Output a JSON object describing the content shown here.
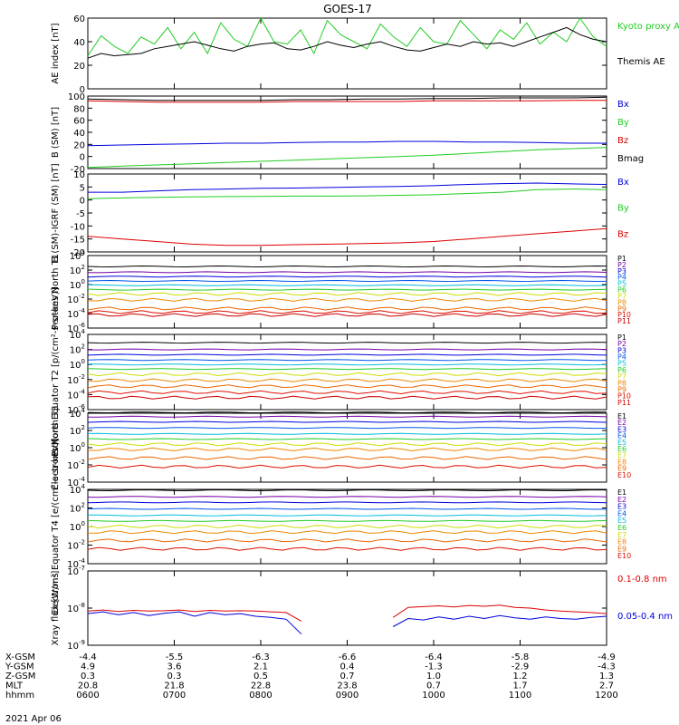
{
  "title": "GOES-17",
  "date": "2021 Apr 06",
  "colors": {
    "black": "#000000",
    "red": "#dd0000",
    "green": "#22cc22",
    "blue": "#0000dd",
    "cyan": "#00bbdd",
    "purple": "#7700aa",
    "yellow": "#ccdd00",
    "orange": "#ee8800"
  },
  "chart_data": [
    {
      "type": "line",
      "ylabel": "AE index [nT]",
      "ylim": [
        0,
        60
      ],
      "yticks": [
        "0",
        "20",
        "40",
        "60"
      ],
      "legend": [
        "Kyoto proxy AE",
        "Themis AE"
      ],
      "series": [
        {
          "name": "Kyoto proxy AE",
          "color": "green",
          "values": [
            28,
            45,
            36,
            30,
            44,
            38,
            52,
            34,
            48,
            30,
            56,
            42,
            36,
            60,
            40,
            38,
            50,
            30,
            58,
            46,
            40,
            34,
            55,
            44,
            36,
            52,
            40,
            38,
            58,
            46,
            34,
            50,
            42,
            56,
            38,
            48,
            40,
            60,
            44,
            36
          ]
        },
        {
          "name": "Themis AE",
          "color": "black",
          "values": [
            26,
            30,
            28,
            29,
            30,
            34,
            36,
            38,
            40,
            37,
            34,
            32,
            36,
            38,
            39,
            34,
            33,
            36,
            40,
            37,
            35,
            38,
            40,
            36,
            33,
            32,
            35,
            38,
            36,
            40,
            38,
            39,
            36,
            40,
            44,
            48,
            52,
            46,
            42,
            40
          ]
        }
      ]
    },
    {
      "type": "line",
      "ylabel": "B (SM) [nT]",
      "ylim": [
        -20,
        100
      ],
      "yticks": [
        "-20",
        "0",
        "20",
        "40",
        "60",
        "80",
        "100"
      ],
      "legend": [
        "Bx",
        "By",
        "Bz",
        "Bmag"
      ],
      "series": [
        {
          "name": "Bx",
          "color": "blue",
          "values": [
            18,
            19,
            20,
            21,
            22,
            22,
            23,
            24,
            24,
            25,
            25,
            24,
            24,
            23,
            22,
            22
          ]
        },
        {
          "name": "By",
          "color": "green",
          "values": [
            -18,
            -16,
            -14,
            -12,
            -10,
            -8,
            -6,
            -4,
            -2,
            0,
            2,
            5,
            8,
            11,
            13,
            15
          ]
        },
        {
          "name": "Bz",
          "color": "red",
          "values": [
            92,
            91,
            90,
            90,
            90,
            90,
            91,
            91,
            91,
            91,
            92,
            92,
            92,
            92,
            93,
            93
          ]
        },
        {
          "name": "Bmag",
          "color": "black",
          "values": [
            95,
            94,
            93,
            93,
            93,
            93,
            94,
            94,
            95,
            95,
            96,
            96,
            97,
            97,
            97,
            98
          ]
        }
      ]
    },
    {
      "type": "line",
      "ylabel": "B (SM)-IGRF (SM) [nT]",
      "ylim": [
        -20,
        10
      ],
      "yticks": [
        "-20",
        "-15",
        "-10",
        "-5",
        "0",
        "5",
        "10"
      ],
      "legend": [
        "Bx",
        "By",
        "Bz"
      ],
      "series": [
        {
          "name": "Bx",
          "color": "blue",
          "values": [
            3,
            3,
            3.5,
            4,
            4.2,
            4.5,
            4.6,
            4.8,
            5,
            5.2,
            5.5,
            6,
            6.3,
            6.5,
            6.2,
            6
          ]
        },
        {
          "name": "By",
          "color": "green",
          "values": [
            0.5,
            0.8,
            1,
            1.2,
            1.3,
            1.4,
            1.5,
            1.5,
            1.6,
            1.8,
            2,
            2.5,
            3,
            4,
            4.2,
            4
          ]
        },
        {
          "name": "Bz",
          "color": "red",
          "values": [
            -14,
            -15,
            -16,
            -17,
            -17.5,
            -17.5,
            -17.2,
            -17,
            -16.8,
            -16.5,
            -16,
            -15,
            -14,
            -13,
            -12,
            -11
          ]
        }
      ]
    },
    {
      "type": "line",
      "ylabel": "Protons North T1",
      "log": true,
      "ylim": [
        -6,
        4
      ],
      "yticks": [
        "10^-6",
        "10^-4",
        "10^-2",
        "10^0",
        "10^2",
        "10^4"
      ],
      "legend": [
        "P1",
        "P2",
        "P3",
        "P4",
        "P5",
        "P6",
        "P7",
        "P8",
        "P9",
        "P10",
        "P11"
      ],
      "levels": [
        2.5,
        1.7,
        1.1,
        0.5,
        -0.1,
        -0.7,
        -1.3,
        -2.1,
        -3.3,
        -3.8,
        -4.2
      ]
    },
    {
      "type": "line",
      "ylabel": "Protons Equator T2 [p/(cm²-s-sr-keV)]",
      "log": true,
      "ylim": [
        -6,
        4
      ],
      "yticks": [
        "10^-6",
        "10^-4",
        "10^-2",
        "10^0",
        "10^2",
        "10^4"
      ],
      "legend": [
        "P1",
        "P2",
        "P3",
        "P4",
        "P5",
        "P6",
        "P7",
        "P8",
        "P9",
        "P10",
        "P11"
      ],
      "levels": [
        2.9,
        2.0,
        1.3,
        0.6,
        0.0,
        -0.6,
        -1.3,
        -2.1,
        -2.9,
        -3.7,
        -4.4
      ]
    },
    {
      "type": "line",
      "ylabel": "Electrons North T3",
      "log": true,
      "ylim": [
        -4,
        4
      ],
      "yticks": [
        "10^-4",
        "10^-2",
        "10^0",
        "10^2",
        "10^4"
      ],
      "legend": [
        "E1",
        "E2",
        "E3",
        "E4",
        "E5",
        "E6",
        "E7",
        "E8",
        "E9",
        "E10"
      ],
      "levels": [
        4.1,
        3.6,
        3.0,
        2.3,
        1.6,
        1.0,
        0.4,
        -0.2,
        -1.2,
        -2.2
      ]
    },
    {
      "type": "line",
      "ylabel": "Electrons Equator T4 [e/(cm²-s-sr-keV)]",
      "log": true,
      "ylim": [
        -4,
        4
      ],
      "yticks": [
        "10^-4",
        "10^-2",
        "10^0",
        "10^2",
        "10^4"
      ],
      "legend": [
        "E1",
        "E2",
        "E3",
        "E4",
        "E5",
        "E6",
        "E7",
        "E8",
        "E9",
        "E10"
      ],
      "levels": [
        3.9,
        3.2,
        2.6,
        1.9,
        1.2,
        0.6,
        0.0,
        -0.6,
        -1.5,
        -2.4
      ]
    },
    {
      "type": "line",
      "ylabel": "Xray flux [W/m²]",
      "log": true,
      "ylim": [
        -9,
        -7
      ],
      "yticks": [
        "10^-9",
        "10^-8",
        "10^-7"
      ],
      "legend": [
        "0.1-0.8 nm",
        "0.05-0.4 nm"
      ],
      "series": [
        {
          "name": "0.1-0.8 nm",
          "color": "red",
          "values": [
            -8.08,
            -8.05,
            -8.09,
            -8.06,
            -8.08,
            -8.07,
            -8.05,
            -8.09,
            -8.06,
            -8.08,
            -8.07,
            -8.08,
            -8.1,
            -8.12,
            -8.35,
            null,
            null,
            null,
            null,
            null,
            -8.25,
            -7.98,
            -7.96,
            -7.94,
            -7.97,
            -7.93,
            -7.95,
            -7.92,
            -7.98,
            -8.0,
            -8.05,
            -8.08,
            -8.1,
            -8.12,
            -8.15
          ]
        },
        {
          "name": "0.05-0.4 nm",
          "color": "blue",
          "values": [
            -8.15,
            -8.1,
            -8.18,
            -8.12,
            -8.2,
            -8.14,
            -8.1,
            -8.22,
            -8.12,
            -8.18,
            -8.15,
            -8.22,
            -8.25,
            -8.3,
            -8.7,
            null,
            null,
            null,
            null,
            null,
            -8.5,
            -8.28,
            -8.32,
            -8.24,
            -8.3,
            -8.22,
            -8.28,
            -8.2,
            -8.26,
            -8.3,
            -8.24,
            -8.28,
            -8.3,
            -8.25,
            -8.22
          ]
        }
      ]
    }
  ],
  "footer": {
    "rows": [
      {
        "label": "X-GSM",
        "values": [
          "-4.4",
          "-5.5",
          "-6.3",
          "-6.6",
          "-6.4",
          "-5.8",
          "-4.9"
        ]
      },
      {
        "label": "Y-GSM",
        "values": [
          "4.9",
          "3.6",
          "2.1",
          "0.4",
          "-1.3",
          "-2.9",
          "-4.3"
        ]
      },
      {
        "label": "Z-GSM",
        "values": [
          "0.3",
          "0.3",
          "0.5",
          "0.7",
          "1.0",
          "1.2",
          "1.3"
        ]
      },
      {
        "label": "MLT",
        "values": [
          "20.8",
          "21.8",
          "22.8",
          "23.8",
          "0.7",
          "1.7",
          "2.7"
        ]
      },
      {
        "label": "hhmm",
        "values": [
          "0600",
          "0700",
          "0800",
          "0900",
          "1000",
          "1100",
          "1200"
        ]
      }
    ]
  }
}
